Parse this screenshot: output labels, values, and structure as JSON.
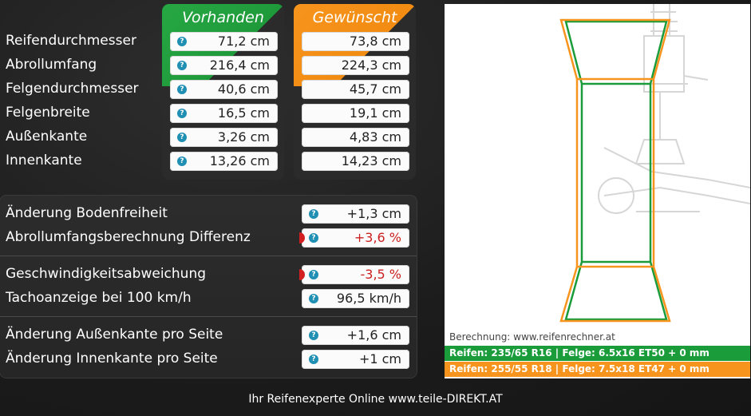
{
  "columns": {
    "current": "Vorhanden",
    "desired": "Gewünscht"
  },
  "rows": [
    {
      "label": "Reifendurchmesser",
      "current": "71,2 cm",
      "desired": "73,8 cm"
    },
    {
      "label": "Abrollumfang",
      "current": "216,4 cm",
      "desired": "224,3 cm"
    },
    {
      "label": "Felgendurchmesser",
      "current": "40,6 cm",
      "desired": "45,7 cm"
    },
    {
      "label": "Felgenbreite",
      "current": "16,5 cm",
      "desired": "19,1 cm"
    },
    {
      "label": "Außenkante",
      "current": "3,26 cm",
      "desired": "4,83 cm"
    },
    {
      "label": "Innenkante",
      "current": "13,26 cm",
      "desired": "14,23 cm"
    }
  ],
  "results": [
    {
      "label": "Änderung Bodenfreiheit",
      "value": "+1,3 cm"
    },
    {
      "label": "Abrollumfangsberechnung Differenz",
      "value": "+3,6 %"
    },
    {
      "label": "Geschwindigkeitsabweichung",
      "value": "-3,5 %"
    },
    {
      "label": "Tachoanzeige bei 100 km/h",
      "value": "96,5 km/h"
    },
    {
      "label": "Änderung Außenkante pro Seite",
      "value": "+1,6 cm"
    },
    {
      "label": "Änderung Innenkante pro Seite",
      "value": "+1 cm"
    }
  ],
  "help_glyph": "?",
  "visual": {
    "calc_text": "Berechnung: www.reifenrechner.at",
    "current_bar": "Reifen: 235/65 R16  |  Felge: 6.5x16 ET50 + 0 mm",
    "desired_bar": "Reifen: 255/55 R18  |  Felge: 7.5x18 ET47 + 0 mm"
  },
  "footer": "Ihr Reifenexperte Online www.teile-DIREKT.AT",
  "colors": {
    "green": "#1a9c3b",
    "orange": "#f7941d",
    "negative": "#cc1f1f"
  }
}
